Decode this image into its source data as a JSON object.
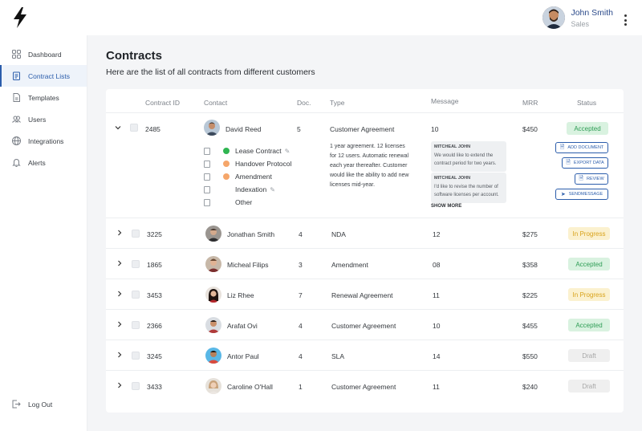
{
  "user": {
    "name": "John Smith",
    "role": "Sales"
  },
  "nav": {
    "items": [
      {
        "label": "Dashboard",
        "icon": "grid-icon"
      },
      {
        "label": "Contract Lists",
        "icon": "clipboard-icon",
        "active": true
      },
      {
        "label": "Templates",
        "icon": "document-icon"
      },
      {
        "label": "Users",
        "icon": "users-icon"
      },
      {
        "label": "Integrations",
        "icon": "globe-icon"
      },
      {
        "label": "Alerts",
        "icon": "bell-icon"
      }
    ],
    "logout": "Log Out"
  },
  "page": {
    "title": "Contracts",
    "subtitle": "Here are the list of all contracts from different customers"
  },
  "table": {
    "columns": {
      "id": "Contract ID",
      "contact": "Contact",
      "doc": "Doc.",
      "type": "Type",
      "message": "Message",
      "mrr": "MRR",
      "status": "Status"
    },
    "expanded": {
      "id": "2485",
      "contact": "David Reed",
      "doc": "5",
      "type": "Customer Agreement",
      "message": "10",
      "mrr": "$450",
      "status": "Accepted",
      "documents": [
        {
          "label": "Lease Contract",
          "dot": "#2fb551",
          "edit": true
        },
        {
          "label": "Handover Protocol",
          "dot": "#f5a66a",
          "edit": false
        },
        {
          "label": "Amendment",
          "dot": "#f5a66a",
          "edit": false
        },
        {
          "label": "Indexation",
          "dot": "",
          "edit": true
        },
        {
          "label": "Other",
          "dot": "",
          "edit": false
        }
      ],
      "description": "1 year agreement. 12 licenses for 12 users. Automatic renewal each year thereafter. Customer would like the ability to add new licenses mid-year.",
      "messages": [
        {
          "from": "MITCHEAL JOHN",
          "text": "We would like to extend the contract period for two years."
        },
        {
          "from": "MITCHEAL JOHN",
          "text": "I'd like to revise the number of software licenses per account."
        }
      ],
      "show_more": "SHOW MORE",
      "actions": [
        "ADD DOCUMENT",
        "EXPORT DATA",
        "REVIEW",
        "SENDMESSAGE"
      ]
    },
    "rows": [
      {
        "id": "3225",
        "contact": "Jonathan Smith",
        "doc": "4",
        "type": "NDA",
        "message": "12",
        "mrr": "$275",
        "status": "In Progress"
      },
      {
        "id": "1865",
        "contact": "Micheal Filips",
        "doc": "3",
        "type": "Amendment",
        "message": "08",
        "mrr": "$358",
        "status": "Accepted"
      },
      {
        "id": "3453",
        "contact": "Liz Rhee",
        "doc": "7",
        "type": "Renewal Agreement",
        "message": "11",
        "mrr": "$225",
        "status": "In Progress"
      },
      {
        "id": "2366",
        "contact": "Arafat Ovi",
        "doc": "4",
        "type": "Customer Agreement",
        "message": "10",
        "mrr": "$455",
        "status": "Accepted"
      },
      {
        "id": "3245",
        "contact": "Antor Paul",
        "doc": "4",
        "type": "SLA",
        "message": "14",
        "mrr": "$550",
        "status": "Draft"
      },
      {
        "id": "3433",
        "contact": "Caroline O'Hall",
        "doc": "1",
        "type": "Customer Agreement",
        "message": "11",
        "mrr": "$240",
        "status": "Draft"
      }
    ]
  },
  "colors": {
    "accent": "#2b5dab",
    "accepted": "#2e9d55",
    "in_progress": "#d8a21a",
    "draft": "#a7a7a7"
  }
}
